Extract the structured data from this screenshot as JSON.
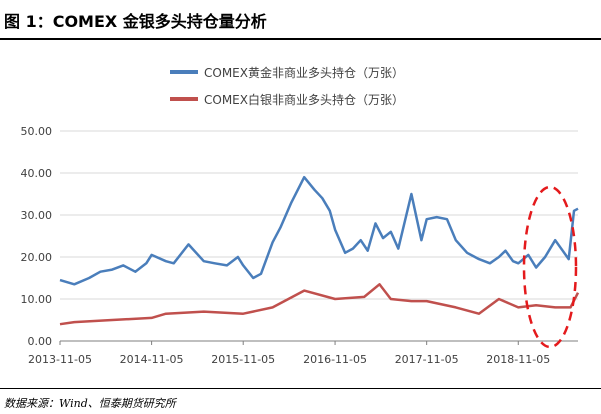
{
  "figure": {
    "title": "图 1：COMEX 金银多头持仓量分析",
    "source": "数据来源：Wind、恒泰期货研究所"
  },
  "colors": {
    "gold_series": "#4a7ebb",
    "silver_series": "#c0504d",
    "highlight": "#e41a1c",
    "grid": "#d9d9d9",
    "axis": "#7f7f7f",
    "text": "#404040"
  },
  "chart_data": {
    "type": "line",
    "y_ticks": [
      "0.00",
      "10.00",
      "20.00",
      "30.00",
      "40.00",
      "50.00"
    ],
    "ylim": [
      0,
      50
    ],
    "x_ticks": [
      "2013-11-05",
      "2014-11-05",
      "2015-11-05",
      "2016-11-05",
      "2017-11-05",
      "2018-11-05"
    ],
    "xlim": [
      "2013-11-05",
      "2019-07-01"
    ],
    "grid": "horizontal",
    "legend_position": "top",
    "series": [
      {
        "name": "COMEX黄金非商业多头持仓（万张）",
        "x": [
          "2013-11-05",
          "2014-01-01",
          "2014-03-01",
          "2014-04-15",
          "2014-06-01",
          "2014-07-15",
          "2014-09-01",
          "2014-10-15",
          "2014-11-05",
          "2015-01-01",
          "2015-02-01",
          "2015-04-01",
          "2015-06-01",
          "2015-07-15",
          "2015-09-01",
          "2015-10-15",
          "2015-11-05",
          "2015-12-15",
          "2016-01-15",
          "2016-03-01",
          "2016-04-01",
          "2016-05-15",
          "2016-07-05",
          "2016-08-15",
          "2016-09-15",
          "2016-10-15",
          "2016-11-05",
          "2016-12-15",
          "2017-01-15",
          "2017-02-15",
          "2017-03-15",
          "2017-04-15",
          "2017-05-15",
          "2017-06-15",
          "2017-07-15",
          "2017-09-05",
          "2017-10-15",
          "2017-11-05",
          "2017-12-15",
          "2018-01-25",
          "2018-03-01",
          "2018-04-15",
          "2018-06-01",
          "2018-07-15",
          "2018-08-20",
          "2018-09-15",
          "2018-10-15",
          "2018-11-05",
          "2018-12-15",
          "2019-01-15",
          "2019-02-20",
          "2019-04-01",
          "2019-05-01",
          "2019-05-25",
          "2019-06-15",
          "2019-07-01"
        ],
        "y": [
          14.5,
          13.5,
          15.0,
          16.5,
          17.0,
          18.0,
          16.5,
          18.5,
          20.5,
          19.0,
          18.5,
          23.0,
          19.0,
          18.5,
          18.0,
          20.0,
          18.0,
          15.0,
          16.0,
          23.5,
          27.0,
          33.0,
          39.0,
          36.0,
          34.0,
          31.0,
          26.5,
          21.0,
          22.0,
          24.0,
          21.5,
          28.0,
          24.5,
          26.0,
          22.0,
          35.0,
          24.0,
          29.0,
          29.5,
          29.0,
          24.0,
          21.0,
          19.5,
          18.5,
          20.0,
          21.5,
          19.0,
          18.5,
          20.5,
          17.5,
          20.0,
          24.0,
          21.5,
          19.5,
          31.0,
          31.5
        ]
      },
      {
        "name": "COMEX白银非商业多头持仓（万张）",
        "x": [
          "2013-11-05",
          "2014-01-01",
          "2014-06-01",
          "2014-11-05",
          "2015-01-01",
          "2015-06-01",
          "2015-11-05",
          "2016-03-01",
          "2016-07-05",
          "2016-11-05",
          "2017-03-01",
          "2017-05-01",
          "2017-06-15",
          "2017-09-05",
          "2017-11-05",
          "2018-03-01",
          "2018-06-01",
          "2018-08-20",
          "2018-11-05",
          "2019-01-15",
          "2019-04-01",
          "2019-06-01",
          "2019-07-01"
        ],
        "y": [
          4.0,
          4.5,
          5.0,
          5.5,
          6.5,
          7.0,
          6.5,
          8.0,
          12.0,
          10.0,
          10.5,
          13.5,
          10.0,
          9.5,
          9.5,
          8.0,
          6.5,
          10.0,
          8.0,
          8.5,
          8.0,
          8.0,
          11.5
        ]
      }
    ]
  }
}
